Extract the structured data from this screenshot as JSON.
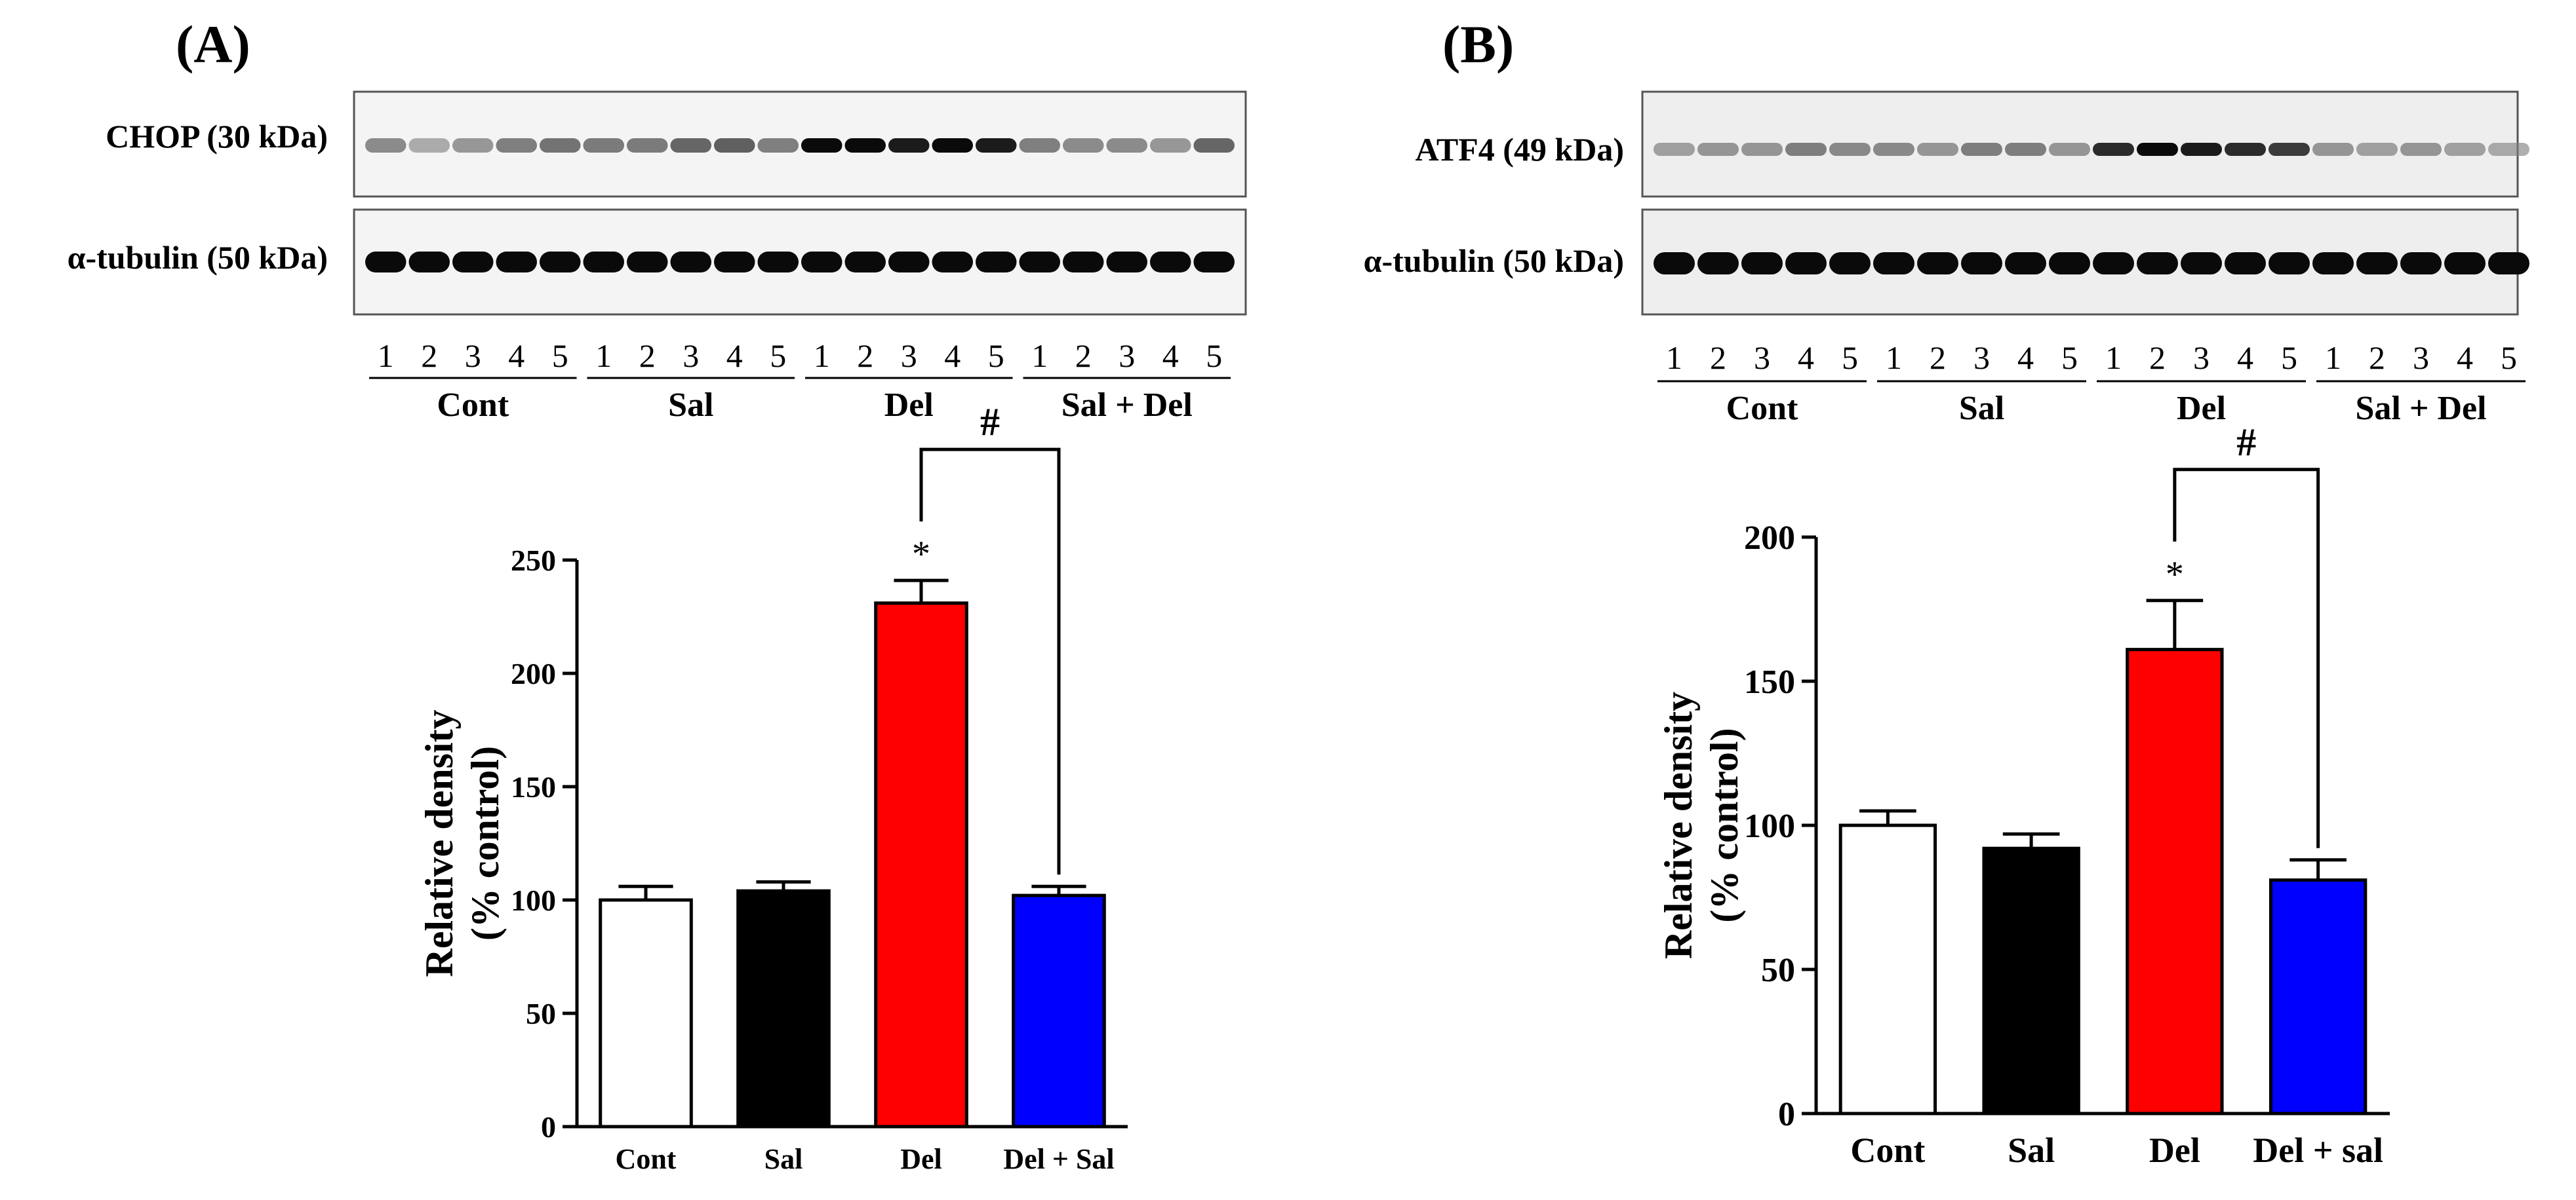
{
  "panels": [
    {
      "letter": "(A)",
      "blots": [
        {
          "label": "CHOP (30 kDa)",
          "intensity": [
            0.55,
            0.4,
            0.5,
            0.6,
            0.65,
            0.62,
            0.62,
            0.7,
            0.72,
            0.6,
            1.0,
            1.0,
            0.95,
            1.0,
            0.95,
            0.6,
            0.55,
            0.55,
            0.5,
            0.7
          ]
        },
        {
          "label": "α-tubulin (50 kDa)",
          "intensity": [
            1,
            1,
            1,
            1,
            1,
            1,
            1,
            1,
            1,
            1,
            1,
            1,
            1,
            1,
            1,
            1,
            1,
            1,
            1,
            1
          ]
        }
      ],
      "lanes": [
        "1",
        "2",
        "3",
        "4",
        "5"
      ],
      "groups": [
        "Cont",
        "Sal",
        "Del",
        "Sal + Del"
      ],
      "bar_colors": [
        "#ffffff",
        "#000000",
        "#ff0000",
        "#0000ff"
      ],
      "significance": {
        "star": "*",
        "hash": "#"
      }
    },
    {
      "letter": "(B)",
      "blots": [
        {
          "label": "ATF4 (49 kDa)",
          "intensity": [
            0.45,
            0.5,
            0.5,
            0.6,
            0.55,
            0.55,
            0.5,
            0.6,
            0.6,
            0.5,
            0.9,
            1.0,
            0.95,
            0.9,
            0.85,
            0.5,
            0.45,
            0.5,
            0.45,
            0.4
          ]
        },
        {
          "label": "α-tubulin (50 kDa)",
          "intensity": [
            1,
            1,
            1,
            1,
            1,
            1,
            1,
            1,
            1,
            1,
            1,
            1,
            1,
            1,
            1,
            1,
            1,
            1,
            1,
            1
          ]
        }
      ],
      "lanes": [
        "1",
        "2",
        "3",
        "4",
        "5"
      ],
      "groups": [
        "Cont",
        "Sal",
        "Del",
        "Sal + Del"
      ],
      "bar_colors": [
        "#ffffff",
        "#000000",
        "#ff0000",
        "#0000ff"
      ],
      "significance": {
        "star": "*",
        "hash": "#"
      }
    }
  ],
  "chart_data": [
    {
      "type": "bar",
      "categories": [
        "Cont",
        "Sal",
        "Del",
        "Del + Sal"
      ],
      "values": [
        100,
        104,
        231,
        102
      ],
      "errors": [
        6,
        4,
        10,
        4
      ],
      "ylabel": [
        "Relative density",
        "(% control)"
      ],
      "ylim": [
        0,
        250
      ],
      "yticks": [
        0,
        50,
        100,
        150,
        200,
        250
      ],
      "significance": [
        {
          "bar": 2,
          "mark": "*"
        },
        {
          "from": 2,
          "to": 3,
          "mark": "#"
        }
      ]
    },
    {
      "type": "bar",
      "categories": [
        "Cont",
        "Sal",
        "Del",
        "Del + sal"
      ],
      "values": [
        100,
        92,
        161,
        81
      ],
      "errors": [
        5,
        5,
        17,
        7
      ],
      "ylabel": [
        "Relative density",
        "(% control)"
      ],
      "ylim": [
        0,
        200
      ],
      "yticks": [
        0,
        50,
        100,
        150,
        200
      ],
      "significance": [
        {
          "bar": 2,
          "mark": "*"
        },
        {
          "from": 2,
          "to": 3,
          "mark": "#"
        }
      ]
    }
  ]
}
